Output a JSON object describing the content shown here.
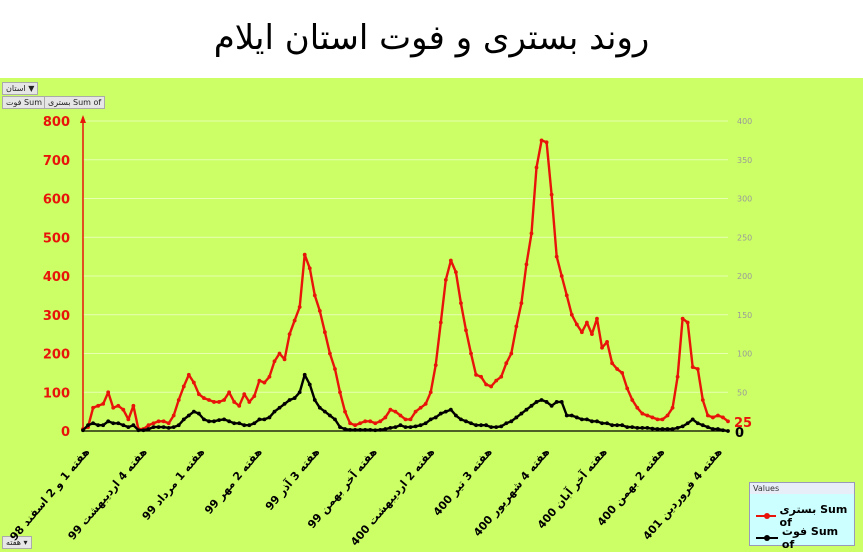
{
  "title": "روند بستری و فوت استان ایلام",
  "filters": {
    "province_button": "استان",
    "sum_death_button": "فوت Sum of",
    "sum_hosp_button": "بستری Sum of",
    "week_button": "هفته"
  },
  "colors": {
    "hosp": "#e8140a",
    "death": "#000000",
    "left_axis": "#e8140a",
    "right_axis": "#9a9a9a",
    "background": "#ccff66"
  },
  "legend": {
    "title": "Values",
    "hosp_label": "بستری Sum of",
    "death_label": "فوت Sum of"
  },
  "chart_data": {
    "type": "line",
    "title": "روند بستری و فوت استان ایلام",
    "x_tick_labels": [
      "هفته 1 و 2 اسفند 98",
      "هفته 4 اردیبهشت 99",
      "هفته 1 مرداد 99",
      "هفته 2 مهر 99",
      "هفته 3 آذر 99",
      "هفته آخر بهمن 99",
      "هفته 2 اردیبهشت 400",
      "هفته 3 تیر 400",
      "هفته 4 شهریور 400",
      "هفته آخر آبان 400",
      "هفته 2 بهمن 400",
      "هفته 4 فروردین 401"
    ],
    "left_axis": {
      "ylim": [
        0,
        800
      ],
      "ticks": [
        0,
        100,
        200,
        300,
        400,
        500,
        600,
        700,
        800
      ]
    },
    "right_axis": {
      "ylim": [
        0,
        400
      ],
      "ticks": [
        0,
        50,
        100,
        150,
        200,
        250,
        300,
        350,
        400
      ]
    },
    "end_labels": {
      "hosp": "25",
      "death": "0"
    },
    "series": [
      {
        "name": "بستری Sum of",
        "axis": "left",
        "values": [
          5,
          10,
          60,
          65,
          70,
          100,
          60,
          65,
          55,
          30,
          65,
          5,
          5,
          15,
          20,
          25,
          25,
          20,
          40,
          80,
          115,
          145,
          125,
          95,
          85,
          80,
          75,
          75,
          80,
          100,
          75,
          65,
          95,
          75,
          90,
          130,
          125,
          140,
          180,
          200,
          185,
          250,
          285,
          320,
          455,
          420,
          350,
          310,
          255,
          200,
          160,
          100,
          50,
          20,
          15,
          20,
          25,
          25,
          20,
          25,
          35,
          55,
          50,
          40,
          30,
          30,
          50,
          60,
          70,
          100,
          170,
          280,
          390,
          440,
          410,
          330,
          260,
          200,
          145,
          140,
          120,
          115,
          130,
          140,
          175,
          200,
          270,
          330,
          430,
          510,
          680,
          750,
          745,
          610,
          450,
          400,
          350,
          300,
          275,
          255,
          280,
          250,
          290,
          215,
          230,
          175,
          160,
          150,
          110,
          80,
          60,
          45,
          40,
          35,
          30,
          30,
          40,
          60,
          140,
          290,
          280,
          165,
          160,
          80,
          40,
          35,
          40,
          35,
          25
        ]
      },
      {
        "name": "فوت Sum of",
        "axis": "left",
        "values": [
          2,
          15,
          20,
          15,
          15,
          25,
          20,
          20,
          15,
          10,
          15,
          2,
          2,
          5,
          10,
          10,
          10,
          8,
          10,
          15,
          30,
          40,
          50,
          45,
          30,
          25,
          25,
          28,
          30,
          25,
          20,
          20,
          15,
          15,
          20,
          30,
          30,
          35,
          50,
          60,
          70,
          80,
          85,
          100,
          145,
          120,
          80,
          60,
          50,
          40,
          30,
          10,
          5,
          3,
          3,
          3,
          3,
          3,
          2,
          3,
          5,
          8,
          10,
          15,
          10,
          10,
          12,
          15,
          20,
          30,
          35,
          45,
          50,
          55,
          40,
          30,
          25,
          20,
          15,
          15,
          15,
          10,
          10,
          12,
          20,
          25,
          35,
          45,
          55,
          65,
          75,
          80,
          75,
          65,
          75,
          75,
          40,
          40,
          35,
          30,
          30,
          25,
          25,
          20,
          20,
          15,
          15,
          15,
          10,
          10,
          8,
          8,
          8,
          6,
          5,
          5,
          5,
          5,
          8,
          12,
          20,
          30,
          20,
          15,
          10,
          5,
          5,
          2,
          0
        ]
      }
    ]
  }
}
